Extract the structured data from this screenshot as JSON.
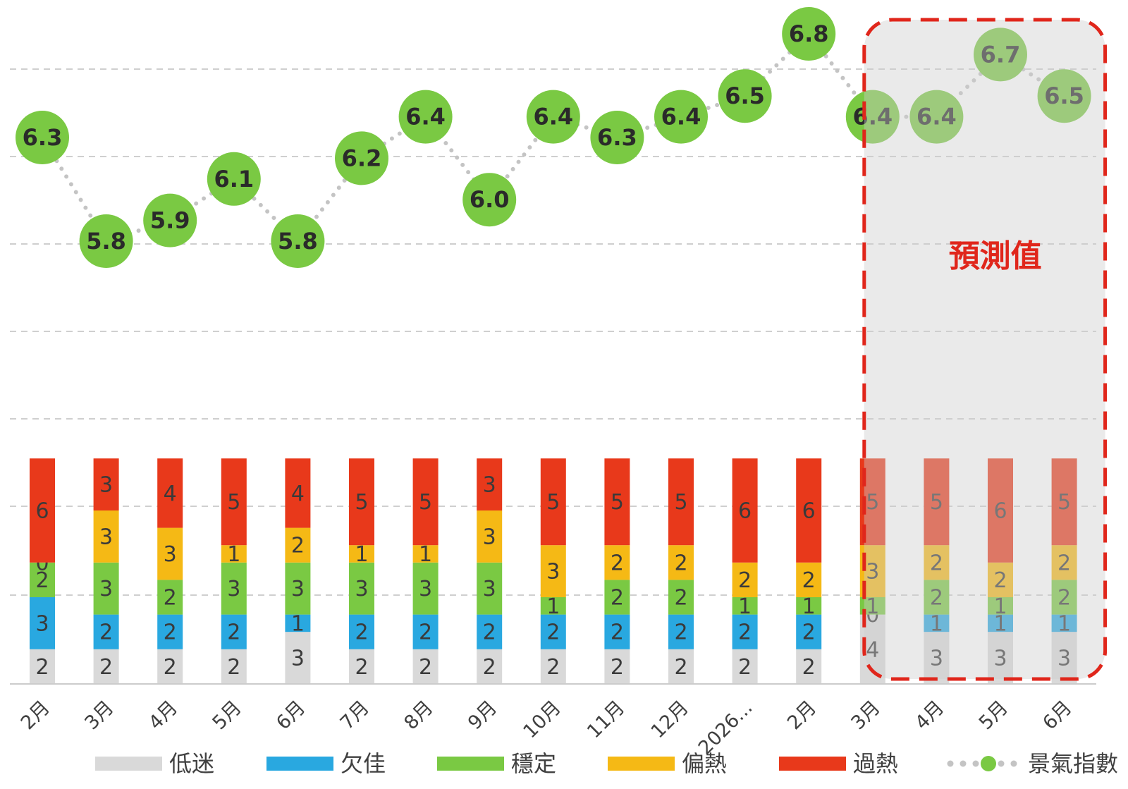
{
  "chart_data": {
    "type": "bar",
    "stacked": true,
    "categories": [
      "2月",
      "3月",
      "4月",
      "5月",
      "6月",
      "7月",
      "8月",
      "9月",
      "10月",
      "11月",
      "12月",
      "2026...",
      "2月",
      "3月",
      "4月",
      "5月",
      "6月"
    ],
    "series": [
      {
        "name": "低迷",
        "color": "#d9d9d9",
        "values": [
          2,
          2,
          2,
          2,
          3,
          2,
          2,
          2,
          2,
          2,
          2,
          2,
          2,
          4,
          3,
          3,
          3
        ]
      },
      {
        "name": "欠佳",
        "color": "#29a8e0",
        "values": [
          3,
          2,
          2,
          2,
          1,
          2,
          2,
          2,
          2,
          2,
          2,
          2,
          2,
          0,
          1,
          1,
          1
        ]
      },
      {
        "name": "穩定",
        "color": "#7ac943",
        "values": [
          2,
          3,
          2,
          3,
          3,
          3,
          3,
          3,
          1,
          2,
          2,
          1,
          1,
          1,
          2,
          1,
          2
        ]
      },
      {
        "name": "偏熱",
        "color": "#f5b915",
        "values": [
          0,
          3,
          3,
          1,
          2,
          1,
          1,
          3,
          3,
          2,
          2,
          2,
          2,
          3,
          2,
          2,
          2
        ]
      },
      {
        "name": "過熱",
        "color": "#e8391b",
        "values": [
          6,
          3,
          4,
          5,
          4,
          5,
          5,
          3,
          5,
          5,
          5,
          6,
          6,
          5,
          5,
          6,
          5
        ]
      }
    ],
    "hidden_segment_labels": [
      [
        0,
        5
      ]
    ],
    "index_series": {
      "name": "景氣指數",
      "color": "#7ac943",
      "values": [
        6.3,
        5.8,
        5.9,
        6.1,
        5.8,
        6.2,
        6.4,
        6.0,
        6.4,
        6.3,
        6.4,
        6.5,
        6.8,
        6.4,
        6.4,
        6.7,
        6.5
      ],
      "labels": [
        "6.3",
        "5.8",
        "5.9",
        "6.1",
        "5.8",
        "6.2",
        "6.4",
        "6.0",
        "6.4",
        "6.3",
        "6.4",
        "6.5",
        "6.8",
        "6.4",
        "6.4",
        "6.7",
        "6.5"
      ],
      "ylim": [
        2.95,
        7.05
      ]
    },
    "forecast": {
      "label": "預測值",
      "from_index": 13,
      "to_index": 16
    },
    "legend": [
      "低迷",
      "欠佳",
      "穩定",
      "偏熱",
      "過熱",
      "景氣指數"
    ],
    "legend_position": "bottom",
    "grid": true,
    "bar_ylim": [
      0,
      26
    ]
  }
}
